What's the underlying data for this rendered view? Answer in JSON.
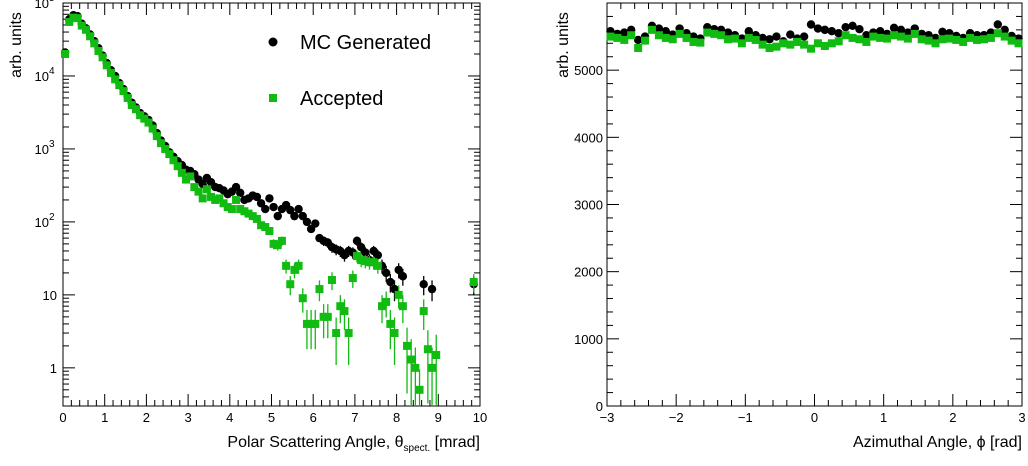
{
  "chart_data": [
    {
      "type": "scatter",
      "title": "",
      "xlabel": "Polar Scattering Angle, θ_spect. [mrad]",
      "xlabel_main": "Polar Scattering Angle, θ",
      "xlabel_sub": "spect.",
      "xlabel_unit": "[mrad]",
      "ylabel": "arb. units",
      "xlim": [
        0,
        10
      ],
      "ylim": [
        0.3,
        100000
      ],
      "yscale": "log",
      "x_ticks": [
        "0",
        "1",
        "2",
        "3",
        "4",
        "5",
        "6",
        "7",
        "8",
        "9",
        "10"
      ],
      "y_ticks": [
        {
          "v": 1,
          "t": "1"
        },
        {
          "v": 10,
          "t": "10"
        },
        {
          "v": 100,
          "b": "10",
          "e": "2"
        },
        {
          "v": 1000,
          "b": "10",
          "e": "3"
        },
        {
          "v": 10000,
          "b": "10",
          "e": "4"
        },
        {
          "v": 100000,
          "b": "10",
          "e": "5"
        }
      ],
      "legend": {
        "position": "top-right",
        "entries": [
          "MC Generated",
          "Accepted"
        ]
      },
      "series": [
        {
          "name": "MC Generated",
          "color": "#000000",
          "marker": "circle",
          "x": [
            0.05,
            0.15,
            0.25,
            0.35,
            0.45,
            0.55,
            0.65,
            0.75,
            0.85,
            0.95,
            1.05,
            1.15,
            1.25,
            1.35,
            1.45,
            1.55,
            1.65,
            1.75,
            1.85,
            1.95,
            2.05,
            2.15,
            2.25,
            2.35,
            2.45,
            2.55,
            2.65,
            2.75,
            2.85,
            2.95,
            3.05,
            3.15,
            3.25,
            3.35,
            3.45,
            3.55,
            3.65,
            3.75,
            3.85,
            3.95,
            4.05,
            4.15,
            4.25,
            4.35,
            4.45,
            4.55,
            4.65,
            4.75,
            4.85,
            4.95,
            5.05,
            5.15,
            5.25,
            5.35,
            5.45,
            5.55,
            5.65,
            5.75,
            5.85,
            5.95,
            6.05,
            6.15,
            6.25,
            6.35,
            6.45,
            6.55,
            6.65,
            6.75,
            6.85,
            6.95,
            7.05,
            7.15,
            7.25,
            7.35,
            7.45,
            7.55,
            7.65,
            7.75,
            7.85,
            7.95,
            8.05,
            8.15,
            8.65,
            8.85,
            9.85
          ],
          "y": [
            21000,
            60000,
            68000,
            66000,
            52000,
            45000,
            37000,
            30000,
            24000,
            19000,
            15000,
            12000,
            10000,
            8000,
            6600,
            5300,
            4300,
            3700,
            3100,
            2800,
            2500,
            2100,
            1650,
            1300,
            1100,
            900,
            780,
            680,
            600,
            520,
            500,
            450,
            380,
            330,
            400,
            350,
            300,
            290,
            270,
            240,
            260,
            300,
            250,
            200,
            210,
            230,
            220,
            180,
            150,
            210,
            160,
            120,
            150,
            170,
            145,
            120,
            150,
            120,
            100,
            80,
            95,
            60,
            55,
            52,
            45,
            42,
            40,
            35,
            40,
            38,
            55,
            45,
            38,
            30,
            40,
            35,
            25,
            20,
            15,
            12,
            22,
            18,
            14,
            12,
            14
          ]
        },
        {
          "name": "Accepted",
          "color": "#11bb11",
          "marker": "square",
          "x": [
            0.05,
            0.15,
            0.25,
            0.35,
            0.45,
            0.55,
            0.65,
            0.75,
            0.85,
            0.95,
            1.05,
            1.15,
            1.25,
            1.35,
            1.45,
            1.55,
            1.65,
            1.75,
            1.85,
            1.95,
            2.05,
            2.15,
            2.25,
            2.35,
            2.45,
            2.55,
            2.65,
            2.75,
            2.85,
            2.95,
            3.05,
            3.15,
            3.25,
            3.35,
            3.45,
            3.55,
            3.65,
            3.75,
            3.85,
            3.95,
            4.05,
            4.15,
            4.25,
            4.35,
            4.45,
            4.55,
            4.65,
            4.75,
            4.85,
            4.95,
            5.05,
            5.15,
            5.25,
            5.35,
            5.45,
            5.55,
            5.65,
            5.75,
            5.85,
            5.95,
            6.05,
            6.15,
            6.25,
            6.35,
            6.45,
            6.55,
            6.65,
            6.75,
            6.85,
            6.95,
            7.05,
            7.15,
            7.25,
            7.35,
            7.45,
            7.55,
            7.65,
            7.75,
            7.85,
            7.95,
            8.05,
            8.15,
            8.25,
            8.35,
            8.45,
            8.55,
            8.65,
            8.75,
            8.85,
            8.95,
            9.85
          ],
          "y": [
            20000,
            55000,
            63000,
            62000,
            49000,
            43000,
            35000,
            28000,
            22000,
            18000,
            14000,
            11000,
            9000,
            7500,
            6200,
            5000,
            4000,
            3500,
            2900,
            2600,
            2300,
            1900,
            1500,
            1200,
            1000,
            850,
            700,
            580,
            470,
            380,
            420,
            300,
            260,
            210,
            280,
            220,
            200,
            210,
            180,
            160,
            150,
            200,
            150,
            140,
            130,
            120,
            110,
            90,
            85,
            75,
            50,
            48,
            55,
            25,
            14,
            22,
            25,
            9,
            4,
            4,
            4,
            12,
            5,
            5,
            16,
            3,
            7,
            6,
            3,
            17,
            34,
            30,
            29,
            28,
            28,
            25,
            7,
            8,
            4,
            3,
            10,
            7,
            2,
            1.3,
            1,
            0.5,
            6,
            1.8,
            1,
            1.5,
            15
          ]
        }
      ]
    },
    {
      "type": "scatter",
      "title": "",
      "xlabel": "Azimuthal Angle, ϕ [rad]",
      "ylabel": "arb. units",
      "xlim": [
        -3,
        3
      ],
      "ylim": [
        0,
        6000
      ],
      "yscale": "linear",
      "x_ticks": [
        "−3",
        "−2",
        "−1",
        "0",
        "1",
        "2",
        "3"
      ],
      "y_ticks": [
        "0",
        "1000",
        "2000",
        "3000",
        "4000",
        "5000"
      ],
      "series": [
        {
          "name": "MC Generated",
          "color": "#000000",
          "marker": "circle",
          "x": [
            -2.95,
            -2.85,
            -2.75,
            -2.65,
            -2.55,
            -2.45,
            -2.35,
            -2.25,
            -2.15,
            -2.05,
            -1.95,
            -1.85,
            -1.75,
            -1.65,
            -1.55,
            -1.45,
            -1.35,
            -1.25,
            -1.15,
            -1.05,
            -0.95,
            -0.85,
            -0.75,
            -0.65,
            -0.55,
            -0.45,
            -0.35,
            -0.25,
            -0.15,
            -0.05,
            0.05,
            0.15,
            0.25,
            0.35,
            0.45,
            0.55,
            0.65,
            0.75,
            0.85,
            0.95,
            1.05,
            1.15,
            1.25,
            1.35,
            1.45,
            1.55,
            1.65,
            1.75,
            1.85,
            1.95,
            2.05,
            2.15,
            2.25,
            2.35,
            2.45,
            2.55,
            2.65,
            2.75,
            2.85,
            2.95
          ],
          "y": [
            5580,
            5540,
            5560,
            5600,
            5450,
            5500,
            5660,
            5620,
            5580,
            5530,
            5620,
            5550,
            5500,
            5470,
            5640,
            5610,
            5600,
            5560,
            5520,
            5470,
            5580,
            5520,
            5480,
            5460,
            5500,
            5430,
            5530,
            5470,
            5500,
            5680,
            5620,
            5600,
            5580,
            5550,
            5640,
            5660,
            5610,
            5520,
            5560,
            5580,
            5540,
            5630,
            5600,
            5560,
            5620,
            5540,
            5520,
            5480,
            5570,
            5550,
            5510,
            5480,
            5550,
            5520,
            5520,
            5560,
            5680,
            5600,
            5510,
            5470
          ]
        },
        {
          "name": "Accepted",
          "color": "#11bb11",
          "marker": "square",
          "x": [
            -2.95,
            -2.85,
            -2.75,
            -2.65,
            -2.55,
            -2.45,
            -2.35,
            -2.25,
            -2.15,
            -2.05,
            -1.95,
            -1.85,
            -1.75,
            -1.65,
            -1.55,
            -1.45,
            -1.35,
            -1.25,
            -1.15,
            -1.05,
            -0.95,
            -0.85,
            -0.75,
            -0.65,
            -0.55,
            -0.45,
            -0.35,
            -0.25,
            -0.15,
            -0.05,
            0.05,
            0.15,
            0.25,
            0.35,
            0.45,
            0.55,
            0.65,
            0.75,
            0.85,
            0.95,
            1.05,
            1.15,
            1.25,
            1.35,
            1.45,
            1.55,
            1.65,
            1.75,
            1.85,
            1.95,
            2.05,
            2.15,
            2.25,
            2.35,
            2.45,
            2.55,
            2.65,
            2.75,
            2.85,
            2.95
          ],
          "y": [
            5500,
            5480,
            5450,
            5520,
            5330,
            5440,
            5600,
            5520,
            5480,
            5460,
            5540,
            5480,
            5420,
            5410,
            5560,
            5540,
            5520,
            5460,
            5470,
            5400,
            5480,
            5450,
            5380,
            5330,
            5350,
            5400,
            5380,
            5420,
            5380,
            5320,
            5400,
            5360,
            5400,
            5430,
            5520,
            5480,
            5460,
            5420,
            5500,
            5480,
            5470,
            5520,
            5500,
            5470,
            5540,
            5460,
            5440,
            5400,
            5460,
            5470,
            5450,
            5420,
            5480,
            5450,
            5460,
            5480,
            5550,
            5500,
            5440,
            5400
          ]
        }
      ]
    }
  ]
}
